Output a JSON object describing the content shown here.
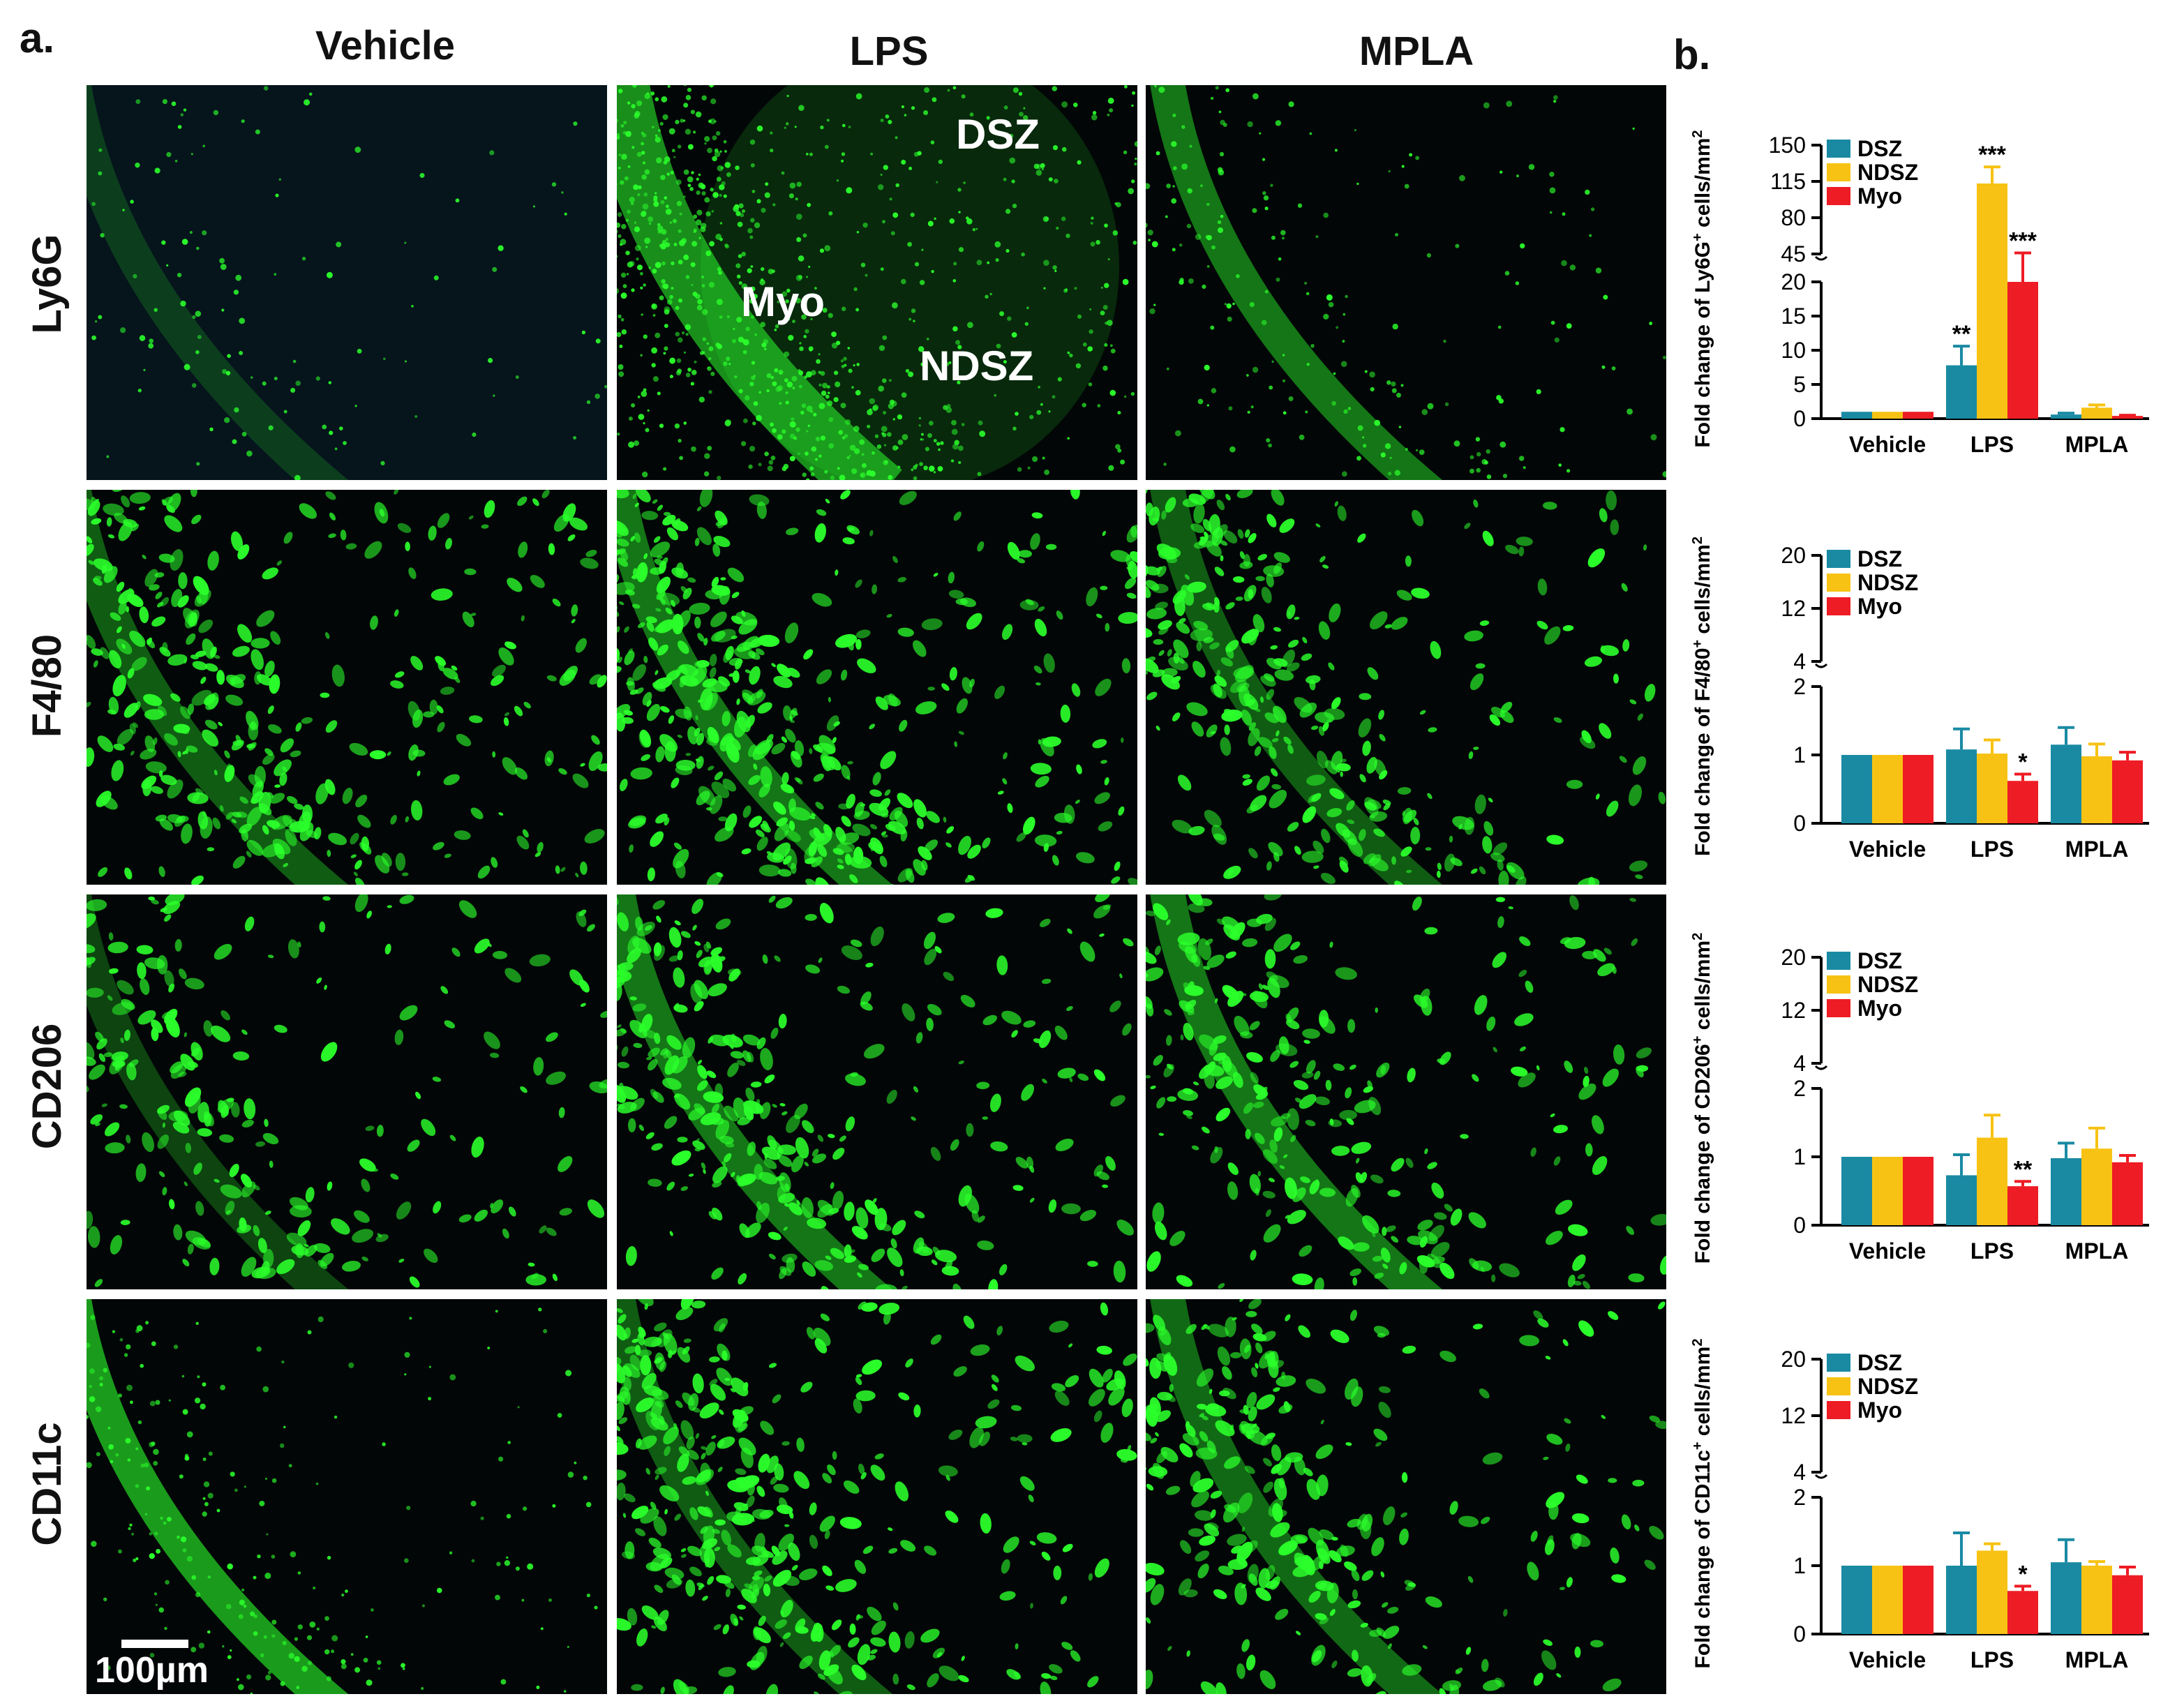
{
  "panel_a_label": "a.",
  "panel_b_label": "b.",
  "columns": [
    "Vehicle",
    "LPS",
    "MPLA"
  ],
  "rows": [
    "Ly6G",
    "F4/80",
    "CD206",
    "CD11c"
  ],
  "region_labels": {
    "dsz": "DSZ",
    "myo": "Myo",
    "ndsz": "NDSZ"
  },
  "scale_bar_label": "100µm",
  "colors": {
    "DSZ": "#1a8aa3",
    "NDSZ": "#f7c213",
    "Myo": "#ee1c24",
    "stain": "#2bff2b",
    "nuclei": "#1a2a8a"
  },
  "chart_data": [
    {
      "type": "bar",
      "categories": [
        "Vehicle",
        "LPS",
        "MPLA"
      ],
      "ylabel": "Fold change of Ly6G",
      "ylabel_sup": "+",
      "ylabel_tail": " cells/mm",
      "ylabel_tail_sup": "2",
      "broken_axis": true,
      "lower_ylim": [
        0,
        20
      ],
      "lower_ticks": [
        "0",
        "5",
        "10",
        "15",
        "20"
      ],
      "upper_ylim": [
        45,
        150
      ],
      "upper_ticks": [
        "45",
        "80",
        "115",
        "150"
      ],
      "legend": [
        "DSZ",
        "NDSZ",
        "Myo"
      ],
      "legend_position": "top-left",
      "series": [
        {
          "name": "DSZ",
          "values": [
            1.0,
            7.8,
            0.6
          ],
          "errors": [
            0,
            2.8,
            0.2
          ]
        },
        {
          "name": "NDSZ",
          "values": [
            1.0,
            113,
            1.6
          ],
          "errors": [
            0,
            16,
            0.4
          ]
        },
        {
          "name": "Myo",
          "values": [
            1.0,
            42,
            0.4
          ],
          "errors": [
            0,
            4,
            0.1
          ]
        }
      ],
      "annotations": [
        {
          "series": "DSZ",
          "category": "LPS",
          "text": "**"
        },
        {
          "series": "NDSZ",
          "category": "LPS",
          "text": "***"
        },
        {
          "series": "Myo",
          "category": "LPS",
          "text": "***"
        }
      ]
    },
    {
      "type": "bar",
      "categories": [
        "Vehicle",
        "LPS",
        "MPLA"
      ],
      "ylabel": "Fold change of F4/80",
      "ylabel_sup": "+",
      "ylabel_tail": " cells/mm",
      "ylabel_tail_sup": "2",
      "broken_axis": true,
      "lower_ylim": [
        0,
        2
      ],
      "lower_ticks": [
        "0",
        "1",
        "2"
      ],
      "upper_ylim": [
        4,
        20
      ],
      "upper_ticks": [
        "4",
        "12",
        "20"
      ],
      "legend": [
        "DSZ",
        "NDSZ",
        "Myo"
      ],
      "legend_position": "top-left",
      "series": [
        {
          "name": "DSZ",
          "values": [
            1.0,
            1.08,
            1.15
          ],
          "errors": [
            0,
            0.3,
            0.25
          ]
        },
        {
          "name": "NDSZ",
          "values": [
            1.0,
            1.02,
            0.98
          ],
          "errors": [
            0,
            0.2,
            0.18
          ]
        },
        {
          "name": "Myo",
          "values": [
            1.0,
            0.62,
            0.92
          ],
          "errors": [
            0,
            0.1,
            0.12
          ]
        }
      ],
      "annotations": [
        {
          "series": "Myo",
          "category": "LPS",
          "text": "*"
        }
      ]
    },
    {
      "type": "bar",
      "categories": [
        "Vehicle",
        "LPS",
        "MPLA"
      ],
      "ylabel": "Fold change of CD206",
      "ylabel_sup": "+",
      "ylabel_tail": " cells/mm",
      "ylabel_tail_sup": "2",
      "broken_axis": true,
      "lower_ylim": [
        0,
        2
      ],
      "lower_ticks": [
        "0",
        "1",
        "2"
      ],
      "upper_ylim": [
        4,
        20
      ],
      "upper_ticks": [
        "4",
        "12",
        "20"
      ],
      "legend": [
        "DSZ",
        "NDSZ",
        "Myo"
      ],
      "legend_position": "top-left",
      "series": [
        {
          "name": "DSZ",
          "values": [
            1.0,
            0.73,
            0.98
          ],
          "errors": [
            0,
            0.3,
            0.22
          ]
        },
        {
          "name": "NDSZ",
          "values": [
            1.0,
            1.28,
            1.12
          ],
          "errors": [
            0,
            0.33,
            0.3
          ]
        },
        {
          "name": "Myo",
          "values": [
            1.0,
            0.57,
            0.92
          ],
          "errors": [
            0,
            0.07,
            0.1
          ]
        }
      ],
      "annotations": [
        {
          "series": "Myo",
          "category": "LPS",
          "text": "**"
        }
      ]
    },
    {
      "type": "bar",
      "categories": [
        "Vehicle",
        "LPS",
        "MPLA"
      ],
      "ylabel": "Fold change of CD11c",
      "ylabel_sup": "+",
      "ylabel_tail": " cells/mm",
      "ylabel_tail_sup": "2",
      "broken_axis": true,
      "lower_ylim": [
        0,
        2
      ],
      "lower_ticks": [
        "0",
        "1",
        "2"
      ],
      "upper_ylim": [
        4,
        20
      ],
      "upper_ticks": [
        "4",
        "12",
        "20"
      ],
      "legend": [
        "DSZ",
        "NDSZ",
        "Myo"
      ],
      "legend_position": "top-left",
      "series": [
        {
          "name": "DSZ",
          "values": [
            1.0,
            1.0,
            1.05
          ],
          "errors": [
            0,
            0.48,
            0.33
          ]
        },
        {
          "name": "NDSZ",
          "values": [
            1.0,
            1.22,
            1.0
          ],
          "errors": [
            0,
            0.1,
            0.06
          ]
        },
        {
          "name": "Myo",
          "values": [
            1.0,
            0.63,
            0.86
          ],
          "errors": [
            0,
            0.07,
            0.12
          ]
        }
      ],
      "annotations": [
        {
          "series": "Myo",
          "category": "LPS",
          "text": "*"
        }
      ]
    }
  ]
}
